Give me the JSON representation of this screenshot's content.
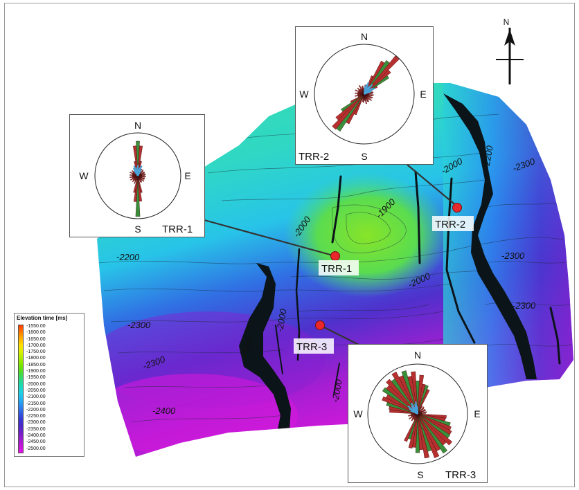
{
  "north_arrow": {
    "label": "N"
  },
  "wells": [
    {
      "id": "TRR-1",
      "label": "TRR-1"
    },
    {
      "id": "TRR-2",
      "label": "TRR-2"
    },
    {
      "id": "TRR-3",
      "label": "TRR-3"
    }
  ],
  "contour_labels": [
    "-1900",
    "-2000",
    "-2000",
    "-2000",
    "-2000",
    "-2000",
    "-2000",
    "-2200",
    "-2200",
    "-2300",
    "-2300",
    "-2300",
    "-2300",
    "-2300",
    "-2400"
  ],
  "rose_diagrams": [
    {
      "well": "TRR-1",
      "caption": "TRR-1",
      "n": "N",
      "e": "E",
      "s": "S",
      "w": "W",
      "dominant_strike": "N-S"
    },
    {
      "well": "TRR-2",
      "caption": "TRR-2",
      "n": "N",
      "e": "E",
      "s": "S",
      "w": "W",
      "dominant_strike": "NE-SW"
    },
    {
      "well": "TRR-3",
      "caption": "TRR-3",
      "n": "N",
      "e": "E",
      "s": "S",
      "w": "W",
      "dominant_strike": "NW-SE"
    }
  ],
  "rose_colors": {
    "primary": "#b5302e",
    "secondary": "#3a8f3a",
    "tertiary": "#4aa3d8"
  },
  "legend": {
    "title": "Elevation time [ms]",
    "values": [
      "-1550.00",
      "-1600.00",
      "-1650.00",
      "-1700.00",
      "-1750.00",
      "-1800.00",
      "-1850.00",
      "-1900.00",
      "-1950.00",
      "-2000.00",
      "-2050.00",
      "-2100.00",
      "-2150.00",
      "-2200.00",
      "-2250.00",
      "-2300.00",
      "-2350.00",
      "-2400.00",
      "-2450.00",
      "-2500.00"
    ],
    "colors": [
      "#ff3a00",
      "#ff7a00",
      "#ffb000",
      "#ffe000",
      "#d8f000",
      "#a8ec00",
      "#78e400",
      "#4cdc2a",
      "#2ed87a",
      "#1ad8b4",
      "#1cd0e4",
      "#20b4f0",
      "#2a8cf0",
      "#3060e4",
      "#3838d4",
      "#4a28c8",
      "#7020c8",
      "#9a1ccc",
      "#c416d8",
      "#e010e4"
    ]
  }
}
